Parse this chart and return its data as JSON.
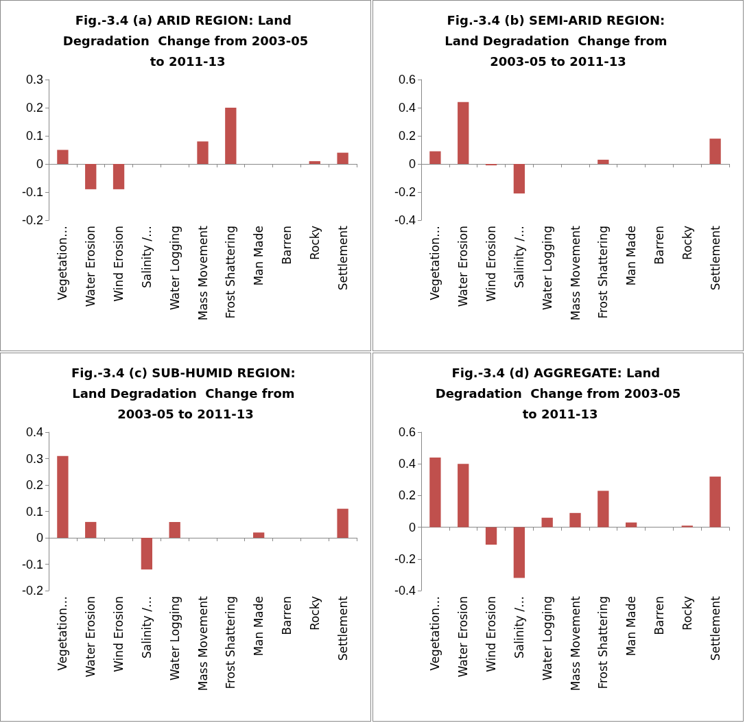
{
  "chart_data": [
    {
      "type": "bar",
      "title": "Fig.-3.4 (a) ARID REGION: Land Degradation  Change from 2003-05 to 2011-13",
      "categories": [
        "Vegetation…",
        "Water Erosion",
        "Wind Erosion",
        "Salinity /…",
        "Water Logging",
        "Mass Movement",
        "Frost Shattering",
        "Man Made",
        "Barren",
        "Rocky",
        "Settlement"
      ],
      "values": [
        0.05,
        -0.09,
        -0.09,
        0,
        0,
        0.08,
        0.2,
        0,
        0,
        0.01,
        0.04
      ],
      "color": "#c0504d",
      "ylim": [
        -0.2,
        0.3
      ],
      "yticks": [
        -0.2,
        -0.1,
        0,
        0.1,
        0.2,
        0.3
      ]
    },
    {
      "type": "bar",
      "title": "Fig.-3.4 (b) SEMI-ARID REGION: Land Degradation  Change from 2003-05 to 2011-13",
      "categories": [
        "Vegetation…",
        "Water Erosion",
        "Wind Erosion",
        "Salinity /…",
        "Water Logging",
        "Mass Movement",
        "Frost Shattering",
        "Man Made",
        "Barren",
        "Rocky",
        "Settlement"
      ],
      "values": [
        0.09,
        0.44,
        -0.01,
        -0.21,
        0,
        0,
        0.03,
        0,
        0,
        0,
        0.18
      ],
      "color": "#c0504d",
      "ylim": [
        -0.4,
        0.6
      ],
      "yticks": [
        -0.4,
        -0.2,
        0,
        0.2,
        0.4,
        0.6
      ]
    },
    {
      "type": "bar",
      "title": "Fig.-3.4 (c) SUB-HUMID REGION: Land Degradation  Change from 2003-05 to 2011-13",
      "categories": [
        "Vegetation…",
        "Water Erosion",
        "Wind Erosion",
        "Salinity /…",
        "Water Logging",
        "Mass Movement",
        "Frost Shattering",
        "Man Made",
        "Barren",
        "Rocky",
        "Settlement"
      ],
      "values": [
        0.31,
        0.06,
        0,
        -0.12,
        0.06,
        0,
        0,
        0.02,
        0,
        0,
        0.11
      ],
      "color": "#c0504d",
      "ylim": [
        -0.2,
        0.4
      ],
      "yticks": [
        -0.2,
        -0.1,
        0,
        0.1,
        0.2,
        0.3,
        0.4
      ]
    },
    {
      "type": "bar",
      "title": "Fig.-3.4 (d) AGGREGATE: Land Degradation  Change from 2003-05 to 2011-13",
      "categories": [
        "Vegetation…",
        "Water Erosion",
        "Wind Erosion",
        "Salinity /…",
        "Water Logging",
        "Mass Movement",
        "Frost Shattering",
        "Man Made",
        "Barren",
        "Rocky",
        "Settlement"
      ],
      "values": [
        0.44,
        0.4,
        -0.11,
        -0.32,
        0.06,
        0.09,
        0.23,
        0.03,
        0,
        0.01,
        0.32
      ],
      "color": "#c0504d",
      "ylim": [
        -0.4,
        0.6
      ],
      "yticks": [
        -0.4,
        -0.2,
        0,
        0.2,
        0.4,
        0.6
      ]
    }
  ]
}
